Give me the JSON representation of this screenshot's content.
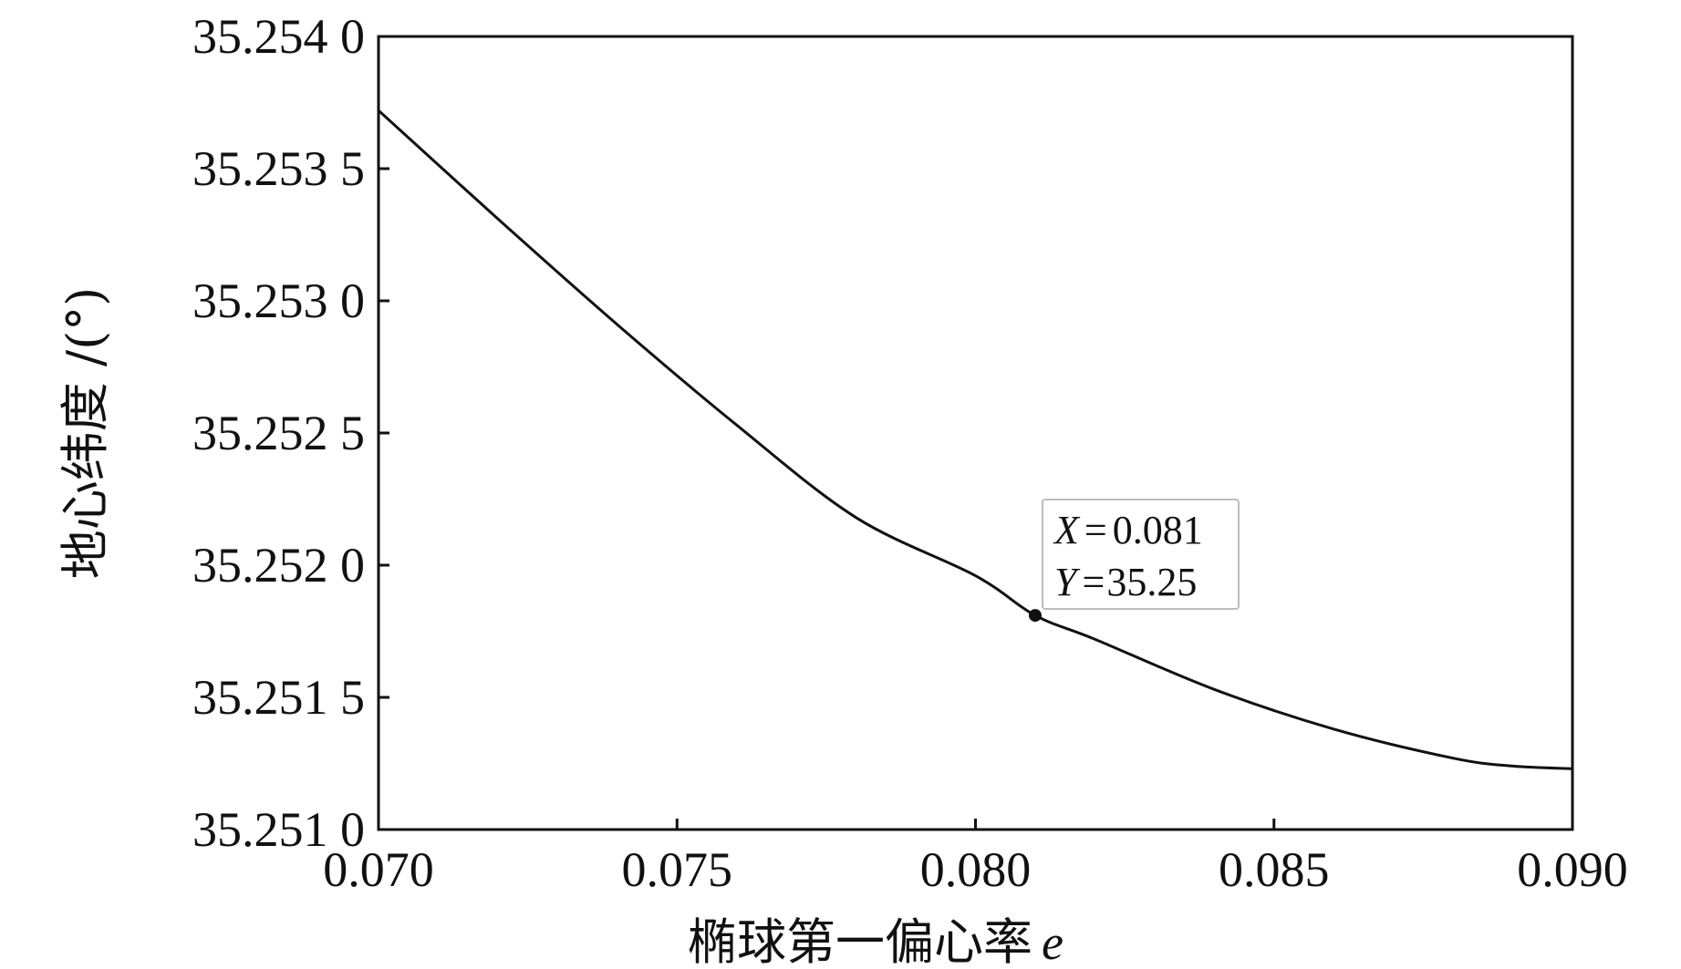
{
  "chart_data": {
    "type": "line",
    "xlabel": "椭球第一偏心率",
    "xlabel_symbol": "e",
    "ylabel": "地心纬度 /(°)",
    "xlim": [
      0.07,
      0.09
    ],
    "ylim": [
      35.251,
      35.254
    ],
    "x_ticks": [
      0.07,
      0.075,
      0.08,
      0.085,
      0.09
    ],
    "x_tick_labels": [
      "0.070",
      "0.075",
      "0.080",
      "0.085",
      "0.090"
    ],
    "y_ticks": [
      35.251,
      35.2515,
      35.252,
      35.2525,
      35.253,
      35.2535,
      35.254
    ],
    "y_tick_labels": [
      "35.251 0",
      "35.251 5",
      "35.252 0",
      "35.252 5",
      "35.253 0",
      "35.253 5",
      "35.254 0"
    ],
    "grid": false,
    "series": [
      {
        "x": [
          0.07,
          0.072,
          0.074,
          0.076,
          0.078,
          0.08,
          0.081,
          0.082,
          0.084,
          0.086,
          0.088,
          0.089,
          0.09
        ],
        "values": [
          35.25372,
          35.25331,
          35.25291,
          35.25253,
          35.25218,
          35.25196,
          35.25181,
          35.25172,
          35.25153,
          35.25138,
          35.25127,
          35.25124,
          35.25123
        ]
      }
    ],
    "datatip": {
      "x": 0.081,
      "y": 35.25181,
      "x_label": "X",
      "y_label": "Y",
      "equals": "=",
      "x_value": "0.081",
      "y_value": "35.25"
    }
  }
}
